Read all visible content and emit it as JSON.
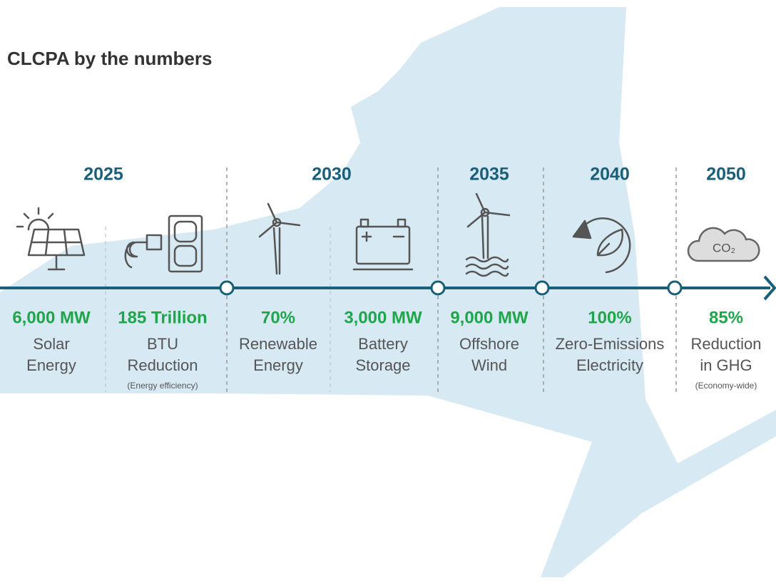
{
  "title": "CLCPA by the numbers",
  "years": [
    "2025",
    "2030",
    "2035",
    "2040",
    "2050"
  ],
  "items": [
    {
      "value": "6,000 MW",
      "label": [
        "Solar",
        "Energy"
      ]
    },
    {
      "value": "185 Trillion",
      "label": [
        "BTU",
        "Reduction"
      ],
      "note": "(Energy efficiency)"
    },
    {
      "value": "70%",
      "label": [
        "Renewable",
        "Energy"
      ]
    },
    {
      "value": "3,000 MW",
      "label": [
        "Battery",
        "Storage"
      ]
    },
    {
      "value": "9,000 MW",
      "label": [
        "Offshore",
        "Wind"
      ]
    },
    {
      "value": "100%",
      "label": [
        "Zero-Emissions",
        "Electricity"
      ]
    },
    {
      "value": "85%",
      "label": [
        "Reduction",
        "in GHG"
      ],
      "note": "(Economy-wide)"
    }
  ],
  "icon_text": "CO₂"
}
